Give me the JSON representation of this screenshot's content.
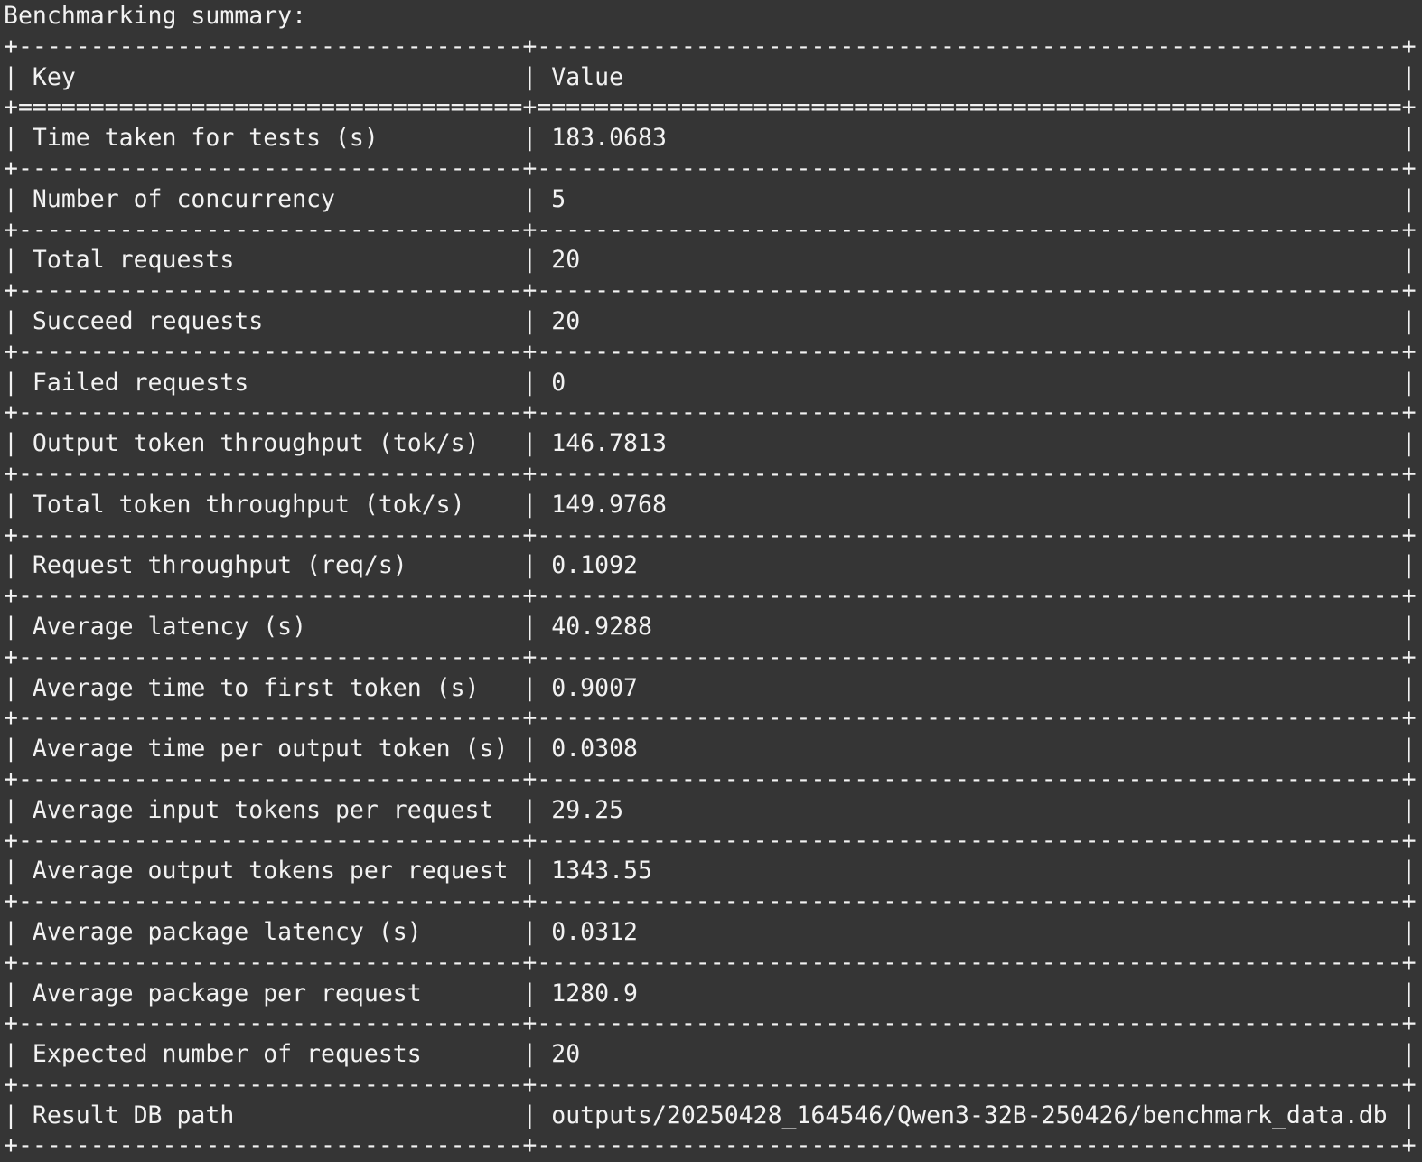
{
  "title": "Benchmarking summary:",
  "header": {
    "key": "Key",
    "value": "Value"
  },
  "rows": [
    {
      "key": "Time taken for tests (s)",
      "value": "183.0683"
    },
    {
      "key": "Number of concurrency",
      "value": "5"
    },
    {
      "key": "Total requests",
      "value": "20"
    },
    {
      "key": "Succeed requests",
      "value": "20"
    },
    {
      "key": "Failed requests",
      "value": "0"
    },
    {
      "key": "Output token throughput (tok/s)",
      "value": "146.7813"
    },
    {
      "key": "Total token throughput (tok/s)",
      "value": "149.9768"
    },
    {
      "key": "Request throughput (req/s)",
      "value": "0.1092"
    },
    {
      "key": "Average latency (s)",
      "value": "40.9288"
    },
    {
      "key": "Average time to first token (s)",
      "value": "0.9007"
    },
    {
      "key": "Average time per output token (s)",
      "value": "0.0308"
    },
    {
      "key": "Average input tokens per request",
      "value": "29.25"
    },
    {
      "key": "Average output tokens per request",
      "value": "1343.55"
    },
    {
      "key": "Average package latency (s)",
      "value": "0.0312"
    },
    {
      "key": "Average package per request",
      "value": "1280.9"
    },
    {
      "key": "Expected number of requests",
      "value": "20"
    },
    {
      "key": "Result DB path",
      "value": "outputs/20250428_164546/Qwen3-32B-250426/benchmark_data.db"
    }
  ],
  "colors": {
    "background": "#353535",
    "text": "#f2f2f2"
  }
}
